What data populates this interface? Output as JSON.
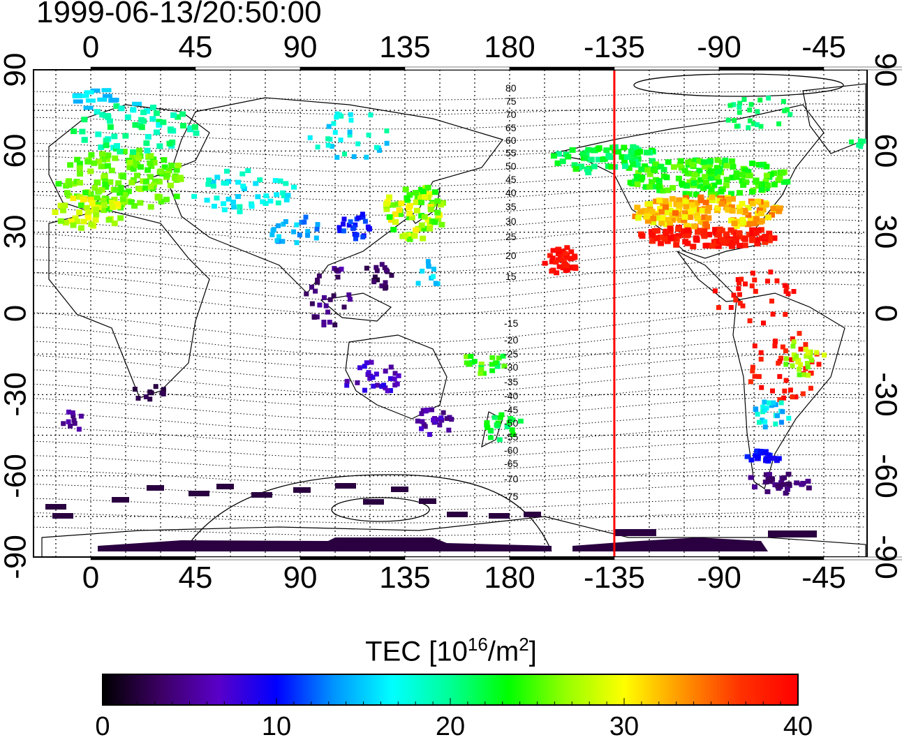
{
  "title": "1999-06-13/20:50:00",
  "map": {
    "top_lon_ticks": [
      "0",
      "45",
      "90",
      "135",
      "180",
      "-135",
      "-90",
      "-45"
    ],
    "bottom_lon_ticks": [
      "0",
      "45",
      "90",
      "135",
      "180",
      "-135",
      "-90",
      "-45"
    ],
    "left_lat_ticks": [
      "90",
      "60",
      "30",
      "0",
      "-30",
      "-60",
      "-90"
    ],
    "right_lat_ticks": [
      "90",
      "60",
      "30",
      "0",
      "-30",
      "-60",
      "-90"
    ],
    "contour_labels_north": [
      "80",
      "75",
      "70",
      "65",
      "60",
      "55",
      "50",
      "45",
      "40",
      "35",
      "30",
      "25",
      "20",
      "15"
    ],
    "contour_labels_south": [
      "-15",
      "-20",
      "-25",
      "-30",
      "-35",
      "-40",
      "-45",
      "-50",
      "-55",
      "-60",
      "-65",
      "-70",
      "-75"
    ],
    "terminator_lon": -135,
    "terminator_color": "#ff0000"
  },
  "colorbar": {
    "title_main": "TEC  [10",
    "title_sup1": "16",
    "title_mid": "/m",
    "title_sup2": "2",
    "title_end": "]",
    "ticks": [
      "0",
      "10",
      "20",
      "30",
      "40"
    ],
    "min": 0,
    "max": 40,
    "colors": [
      "#000000",
      "#3c0064",
      "#5a00c8",
      "#0000ff",
      "#0096ff",
      "#00ffff",
      "#00ff96",
      "#00ff00",
      "#96ff00",
      "#ffff00",
      "#ff9600",
      "#ff3200",
      "#ff0000"
    ]
  }
}
